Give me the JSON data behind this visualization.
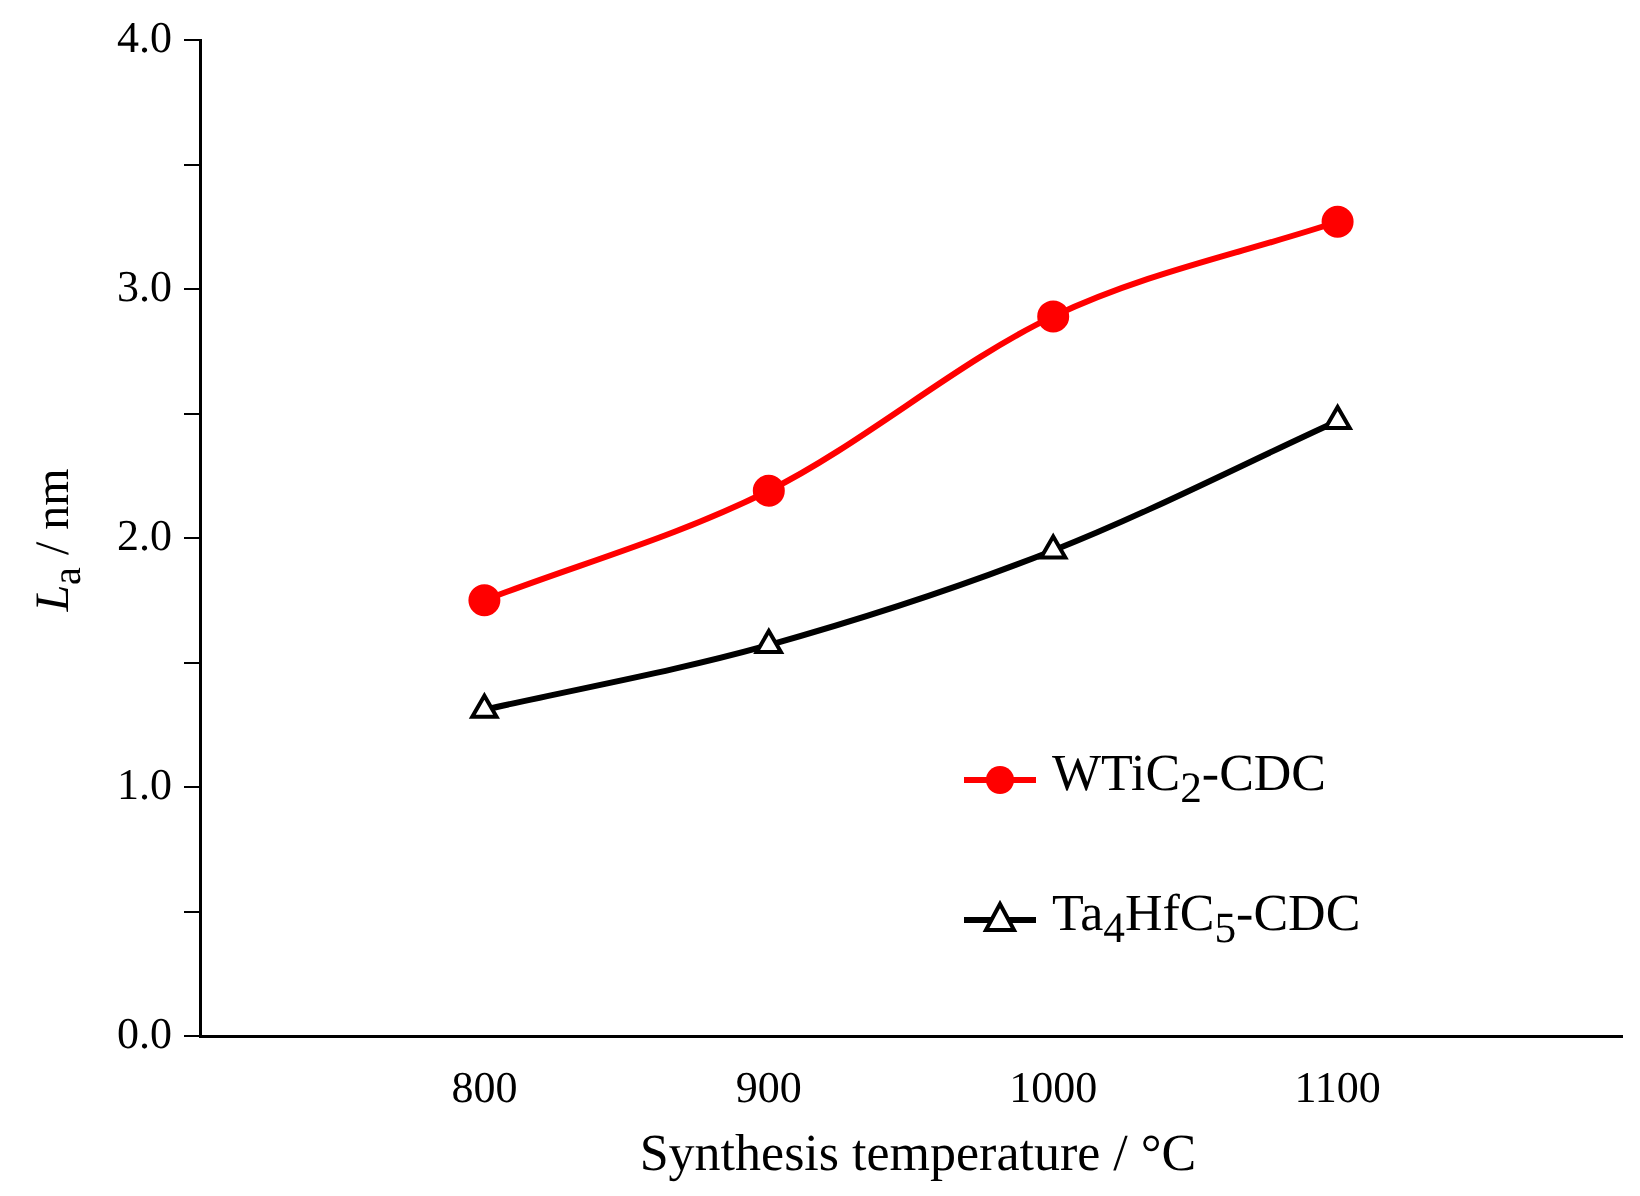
{
  "chart_data": {
    "type": "line",
    "xlabel": "Synthesis temperature / °C",
    "ylabel": "L$_{a}$ / nm",
    "x": [
      800,
      900,
      1000,
      1100
    ],
    "series": [
      {
        "name": "WTiC$_{2}$-CDC",
        "color": "#ff0000",
        "marker": "circle",
        "values": [
          1.75,
          2.19,
          2.89,
          3.27
        ]
      },
      {
        "name": "Ta$_{4}$HfC$_{5}$-CDC",
        "color": "#000000",
        "marker": "triangle",
        "values": [
          1.31,
          1.57,
          1.95,
          2.47
        ]
      }
    ],
    "xlim": [
      700,
      1200
    ],
    "xticks": [
      800,
      900,
      1000,
      1100
    ],
    "ylim": [
      0,
      4
    ],
    "yticks": [
      {
        "value": 0,
        "label": "0.0"
      },
      {
        "value": 0.5,
        "label": null
      },
      {
        "value": 1,
        "label": "1.0"
      },
      {
        "value": 1.5,
        "label": null
      },
      {
        "value": 2,
        "label": "2.0"
      },
      {
        "value": 2.5,
        "label": null
      },
      {
        "value": 3,
        "label": "3.0"
      },
      {
        "value": 3.5,
        "label": null
      },
      {
        "value": 4,
        "label": "4.0"
      }
    ],
    "grid": false,
    "legend": "right",
    "line_style": "solid"
  }
}
